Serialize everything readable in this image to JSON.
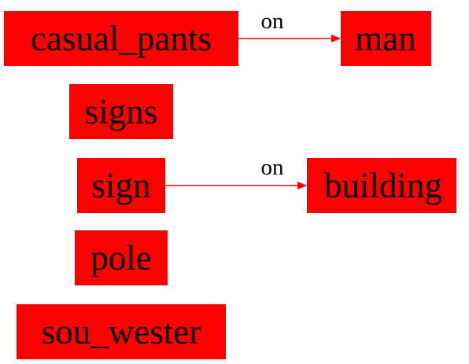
{
  "colors": {
    "node_fill": "#ff0000",
    "edge": "#ff0000",
    "text": "#000000",
    "background": "#ffffff"
  },
  "nodes": {
    "casual_pants": "casual_pants",
    "man": "man",
    "signs": "signs",
    "sign": "sign",
    "building": "building",
    "pole": "pole",
    "sou_wester": "sou_wester"
  },
  "edges": [
    {
      "from": "casual_pants",
      "to": "man",
      "label": "on"
    },
    {
      "from": "sign",
      "to": "building",
      "label": "on"
    }
  ]
}
